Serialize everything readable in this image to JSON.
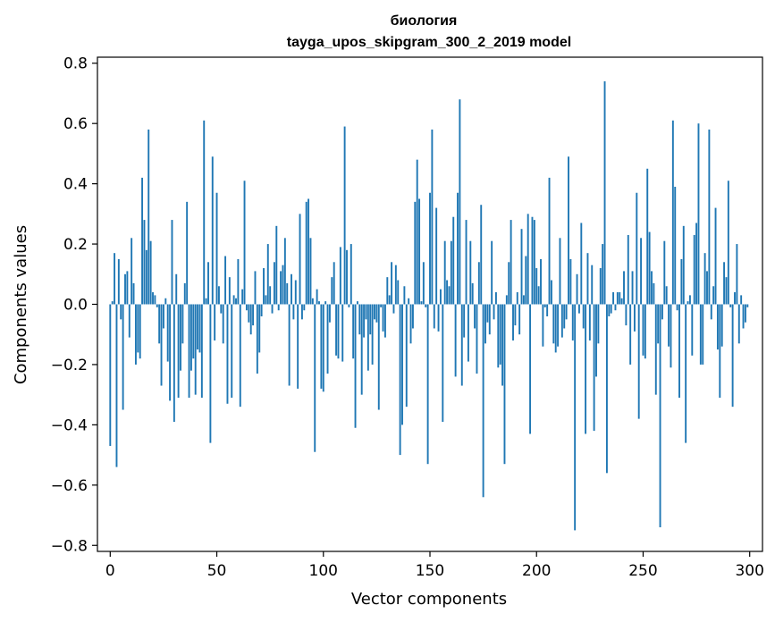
{
  "chart_data": {
    "type": "bar",
    "title": "биология",
    "subtitle": "tayga_upos_skipgram_300_2_2019 model",
    "xlabel": "Vector components",
    "ylabel": "Components values",
    "xlim": [
      -6,
      306
    ],
    "ylim": [
      -0.82,
      0.82
    ],
    "xticks": [
      0,
      50,
      100,
      150,
      200,
      250,
      300
    ],
    "yticks": [
      -0.8,
      -0.6,
      -0.4,
      -0.2,
      0.0,
      0.2,
      0.4,
      0.6,
      0.8
    ],
    "xtick_labels": [
      "0",
      "50",
      "100",
      "150",
      "200",
      "250",
      "300"
    ],
    "ytick_labels": [
      "−0.8",
      "−0.6",
      "−0.4",
      "−0.2",
      "0.0",
      "0.2",
      "0.4",
      "0.6",
      "0.8"
    ],
    "bar_color": "#1f77b4",
    "grid": false,
    "legend": "none",
    "values": [
      -0.47,
      0.01,
      0.17,
      -0.54,
      0.15,
      -0.05,
      -0.35,
      0.1,
      0.11,
      -0.11,
      0.22,
      0.07,
      -0.2,
      -0.16,
      -0.18,
      0.42,
      0.28,
      0.18,
      0.58,
      0.21,
      0.04,
      0.03,
      -0.01,
      -0.13,
      -0.27,
      -0.08,
      0.02,
      -0.19,
      -0.32,
      0.28,
      -0.39,
      0.1,
      -0.31,
      -0.22,
      -0.13,
      0.07,
      0.34,
      -0.31,
      -0.22,
      -0.18,
      -0.3,
      -0.15,
      -0.16,
      -0.31,
      0.61,
      0.02,
      0.14,
      -0.46,
      0.49,
      -0.12,
      0.37,
      0.06,
      -0.03,
      -0.13,
      0.16,
      -0.33,
      0.09,
      -0.31,
      0.03,
      0.02,
      0.15,
      -0.34,
      0.05,
      0.41,
      -0.02,
      -0.06,
      -0.1,
      -0.07,
      0.11,
      -0.23,
      -0.16,
      -0.04,
      0.12,
      0.03,
      0.2,
      0.06,
      -0.03,
      0.14,
      0.26,
      -0.02,
      0.11,
      0.13,
      0.22,
      0.07,
      -0.27,
      0.1,
      -0.05,
      0.08,
      -0.28,
      0.3,
      -0.05,
      -0.02,
      0.34,
      0.35,
      0.22,
      0.02,
      -0.49,
      0.05,
      0.01,
      -0.28,
      -0.29,
      0.01,
      -0.23,
      -0.06,
      0.09,
      0.14,
      -0.17,
      -0.18,
      0.19,
      -0.19,
      0.59,
      0.18,
      -0.01,
      0.2,
      -0.18,
      -0.41,
      0.01,
      -0.1,
      -0.3,
      -0.11,
      -0.05,
      -0.22,
      -0.1,
      -0.2,
      -0.05,
      -0.06,
      -0.35,
      -0.01,
      -0.09,
      -0.11,
      0.09,
      0.03,
      0.14,
      -0.03,
      0.13,
      0.08,
      -0.5,
      -0.4,
      0.06,
      -0.34,
      0.02,
      -0.13,
      -0.08,
      0.34,
      0.48,
      0.35,
      0.01,
      0.14,
      -0.01,
      -0.53,
      0.37,
      0.58,
      -0.08,
      0.32,
      -0.09,
      0.05,
      -0.39,
      0.21,
      0.08,
      0.06,
      0.21,
      0.29,
      -0.24,
      0.37,
      0.68,
      -0.27,
      -0.11,
      0.28,
      -0.19,
      0.21,
      0.07,
      -0.08,
      -0.23,
      0.14,
      0.33,
      -0.64,
      -0.13,
      -0.06,
      -0.1,
      0.21,
      -0.05,
      0.04,
      -0.21,
      -0.2,
      -0.27,
      -0.53,
      0.03,
      0.14,
      0.28,
      -0.12,
      -0.07,
      0.04,
      -0.1,
      0.25,
      0.03,
      0.16,
      0.3,
      -0.43,
      0.29,
      0.28,
      0.12,
      0.06,
      0.15,
      -0.14,
      -0.01,
      -0.04,
      0.42,
      0.08,
      -0.13,
      -0.16,
      -0.14,
      0.22,
      -0.11,
      -0.08,
      -0.05,
      0.49,
      0.15,
      -0.12,
      -0.75,
      0.1,
      -0.03,
      0.27,
      -0.08,
      -0.43,
      0.17,
      -0.12,
      0.13,
      -0.42,
      -0.24,
      -0.13,
      0.12,
      0.2,
      0.74,
      -0.56,
      -0.04,
      -0.03,
      0.04,
      -0.02,
      0.04,
      0.04,
      0.02,
      0.11,
      -0.07,
      0.23,
      -0.2,
      0.11,
      -0.09,
      0.37,
      -0.38,
      0.22,
      -0.17,
      -0.18,
      0.45,
      0.24,
      0.11,
      0.07,
      -0.3,
      -0.13,
      -0.74,
      -0.05,
      0.21,
      0.06,
      -0.14,
      -0.21,
      0.61,
      0.39,
      -0.02,
      -0.31,
      0.15,
      0.26,
      -0.46,
      0.01,
      0.03,
      -0.17,
      0.23,
      0.27,
      0.6,
      -0.2,
      -0.2,
      0.17,
      0.11,
      0.58,
      -0.05,
      0.06,
      0.32,
      -0.15,
      -0.31,
      -0.14,
      0.14,
      0.09,
      0.41,
      -0.01,
      -0.34,
      0.04,
      0.2,
      -0.13,
      0.03,
      -0.08,
      -0.06,
      -0.01
    ]
  }
}
